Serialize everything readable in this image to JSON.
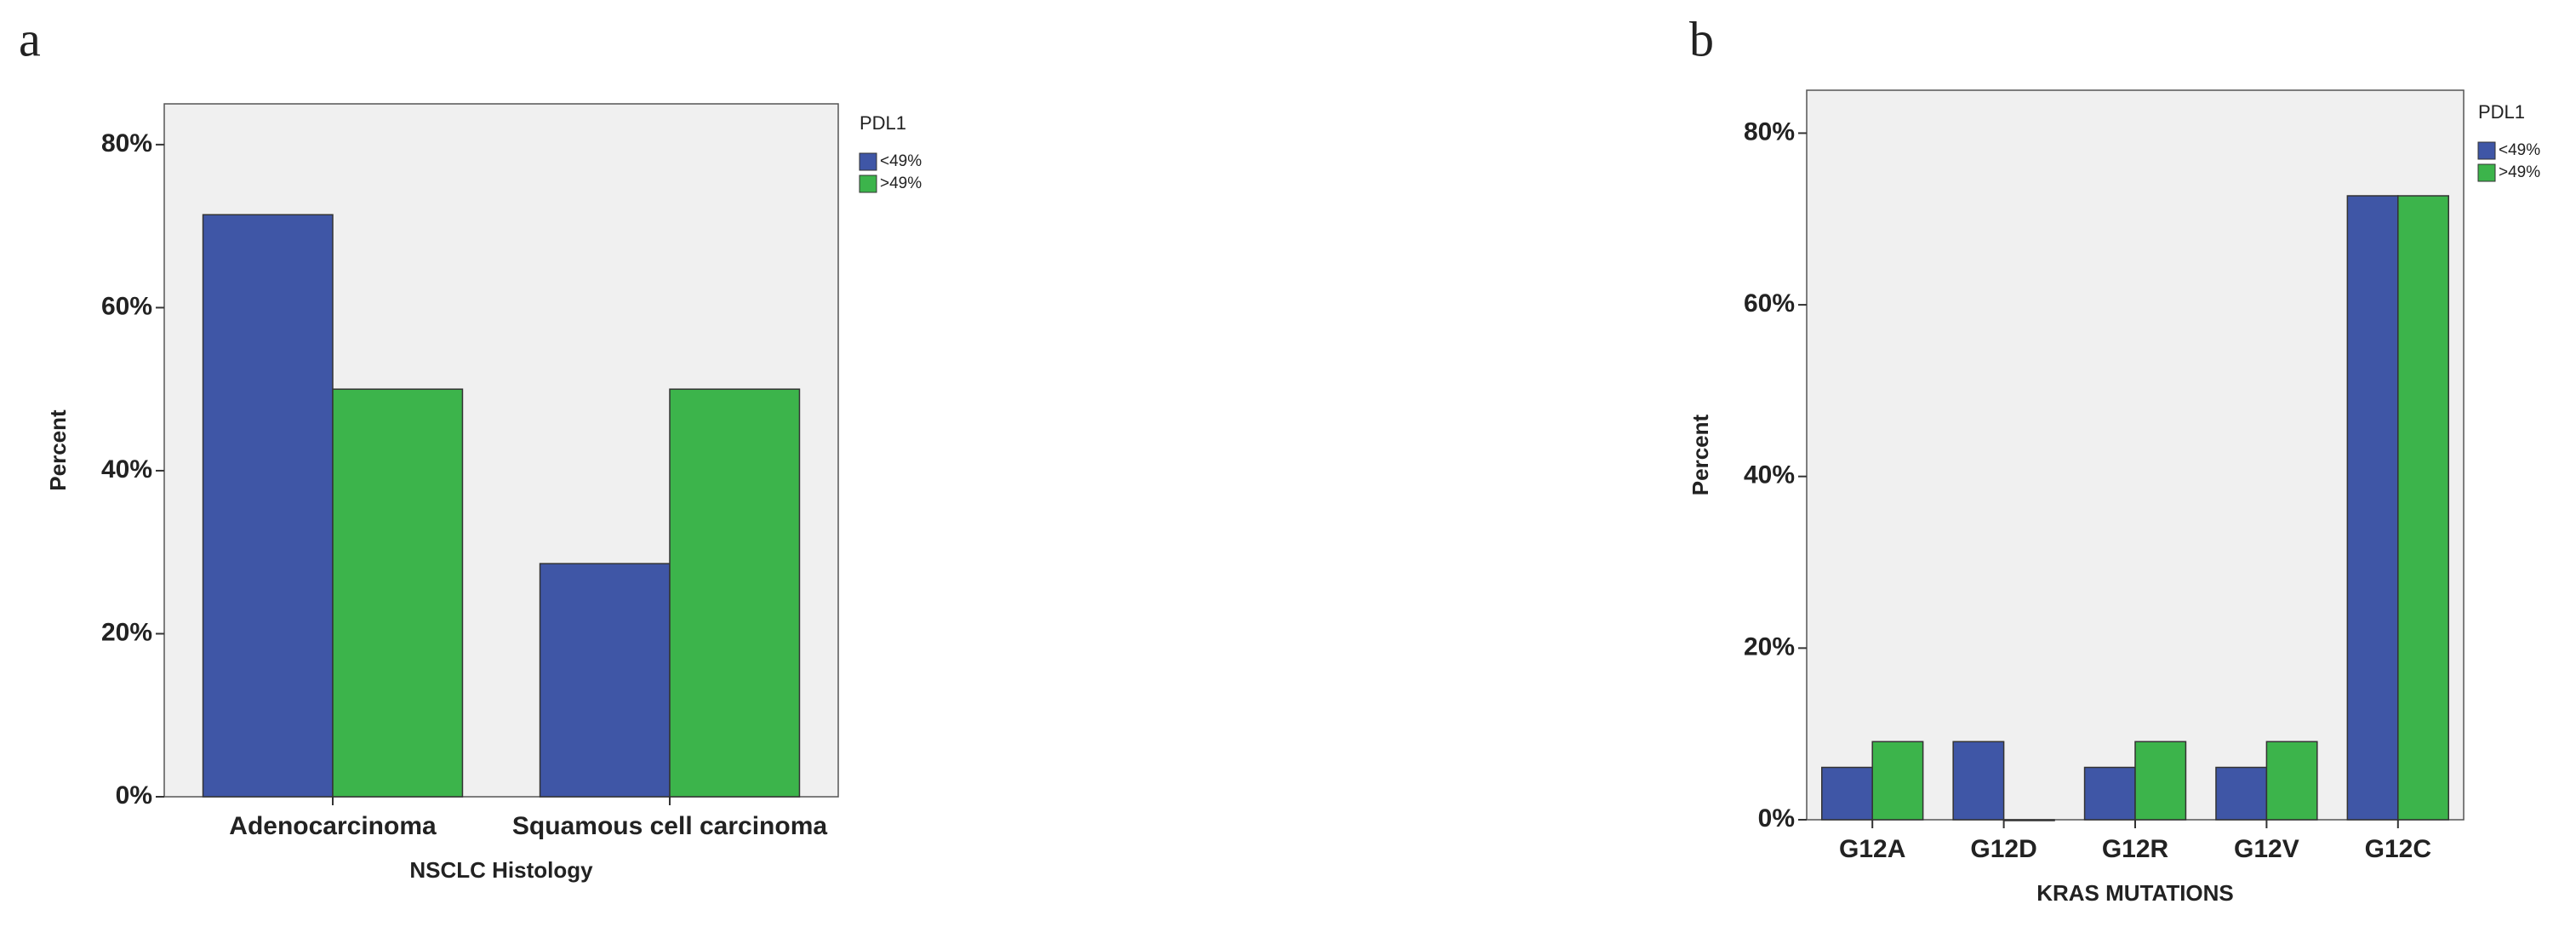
{
  "chart_data": [
    {
      "type": "bar",
      "panel_label": "a",
      "x_label": "NSCLC Histology",
      "y_label": "Percent",
      "legend_title": "PDL1",
      "categories": [
        "Adenocarcinoma",
        "Squamous cell carcinoma"
      ],
      "series": [
        {
          "name": "<49%",
          "color": "#3f56a6",
          "values": [
            71.4,
            28.6
          ]
        },
        {
          "name": ">49%",
          "color": "#3cb44b",
          "values": [
            50,
            50
          ]
        }
      ],
      "ylim": [
        0,
        85
      ],
      "yticks": [
        {
          "value": 0,
          "label": "0%"
        },
        {
          "value": 20,
          "label": "20%"
        },
        {
          "value": 40,
          "label": "40%"
        },
        {
          "value": 60,
          "label": "60%"
        },
        {
          "value": 80,
          "label": "80%"
        }
      ]
    },
    {
      "type": "bar",
      "panel_label": "b",
      "x_label": "KRAS MUTATIONS",
      "y_label": "Percent",
      "legend_title": "PDL1",
      "categories": [
        "G12A",
        "G12D",
        "G12R",
        "G12V",
        "G12C"
      ],
      "series": [
        {
          "name": "<49%",
          "color": "#3f56a6",
          "values": [
            6.1,
            9.1,
            6.1,
            6.1,
            72.7
          ]
        },
        {
          "name": ">49%",
          "color": "#3cb44b",
          "values": [
            9.1,
            0,
            9.1,
            9.1,
            72.7
          ]
        }
      ],
      "ylim": [
        0,
        85
      ],
      "yticks": [
        {
          "value": 0,
          "label": "0%"
        },
        {
          "value": 20,
          "label": "20%"
        },
        {
          "value": 40,
          "label": "40%"
        },
        {
          "value": 60,
          "label": "60%"
        },
        {
          "value": 80,
          "label": "80%"
        }
      ]
    }
  ]
}
